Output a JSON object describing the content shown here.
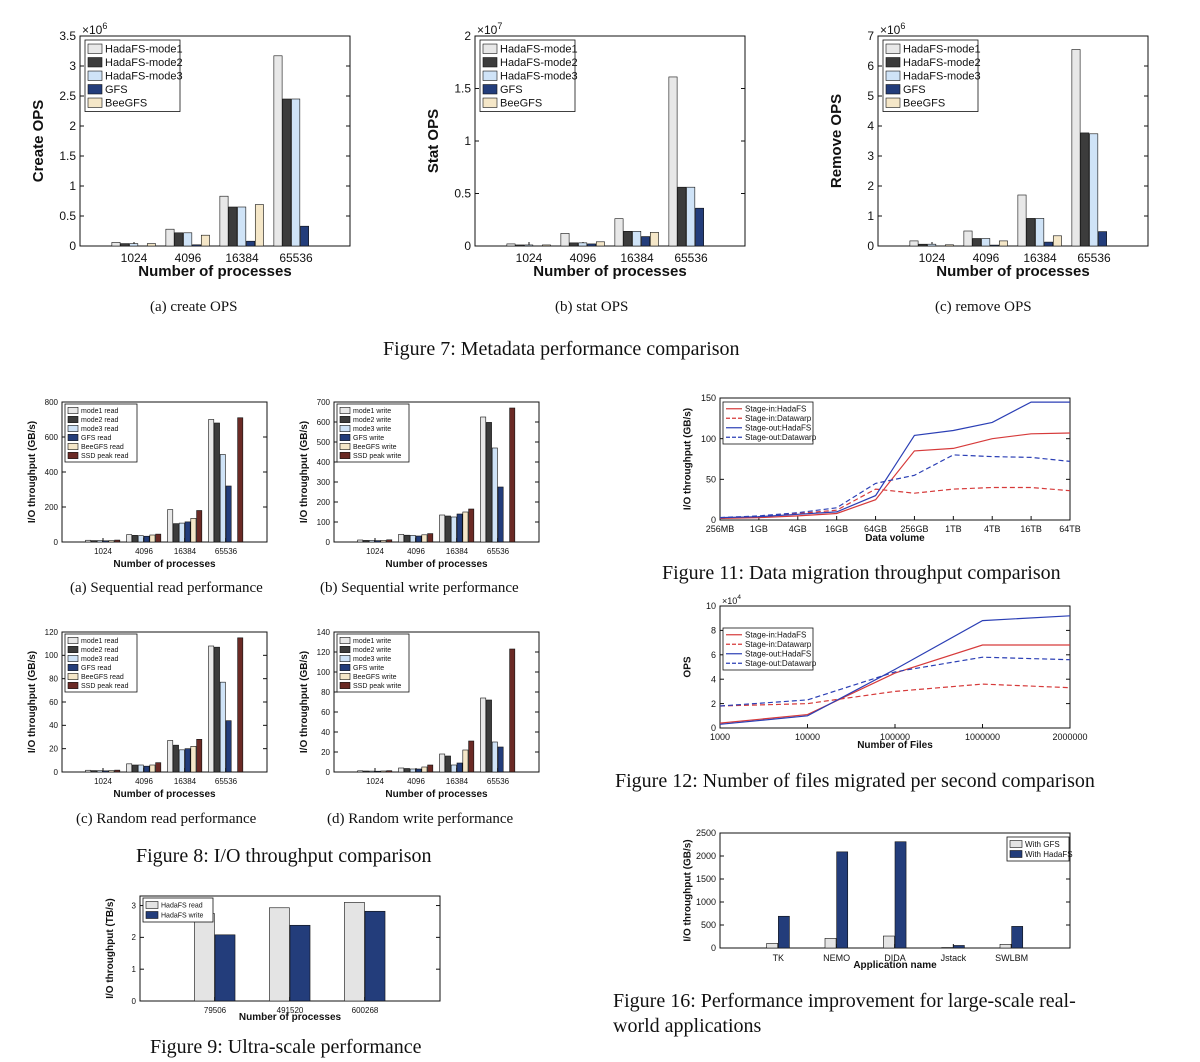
{
  "colors": {
    "mode1": "#e8e8e8",
    "mode2": "#3c3c3c",
    "mode3": "#cfe3f7",
    "gfs": "#233d7b",
    "beegfs": "#f5e7c8",
    "ssd": "#6b2a25",
    "withgfs": "#e4e4e4",
    "withhadafs": "#233d7b",
    "red": "#d63a3a",
    "blue": "#2b3fb5"
  },
  "figures": {
    "fig7": {
      "caption": "Figure 7: Metadata performance comparison"
    },
    "fig8": {
      "caption": "Figure 8: I/O throughput comparison"
    },
    "fig9": {
      "caption": "Figure 9: Ultra-scale performance"
    },
    "fig11": {
      "caption": "Figure 11: Data migration throughput comparison"
    },
    "fig12": {
      "caption": "Figure 12: Number of files migrated per second comparison"
    },
    "fig16": {
      "caption_line1": "Figure 16: Performance improvement for large-scale real-",
      "caption_line2": "world applications"
    }
  },
  "chart_data": [
    {
      "id": "f7a",
      "type": "bar",
      "caption": "(a)  create OPS",
      "ylabel": "Create OPS",
      "xlabel": "Number of processes",
      "multiplier": "×10",
      "multiplier_exp": "6",
      "ylim": [
        0,
        3.5
      ],
      "yticks": [
        0,
        0.5,
        1,
        1.5,
        2,
        2.5,
        3,
        3.5
      ],
      "ytick_labels": [
        "0",
        "0.5",
        "1",
        "1.5",
        "2",
        "2.5",
        "3",
        "3.5"
      ],
      "categories": [
        "1024",
        "4096",
        "16384",
        "65536"
      ],
      "series": [
        {
          "name": "HadaFS-mode1",
          "color": "mode1",
          "values": [
            0.06,
            0.28,
            0.83,
            3.17
          ]
        },
        {
          "name": "HadaFS-mode2",
          "color": "mode2",
          "values": [
            0.04,
            0.22,
            0.65,
            2.45
          ]
        },
        {
          "name": "HadaFS-mode3",
          "color": "mode3",
          "values": [
            0.04,
            0.22,
            0.65,
            2.45
          ]
        },
        {
          "name": "GFS",
          "color": "gfs",
          "values": [
            0.0,
            0.02,
            0.08,
            0.33
          ]
        },
        {
          "name": "BeeGFS",
          "color": "beegfs",
          "values": [
            0.04,
            0.18,
            0.69,
            0.0
          ]
        }
      ]
    },
    {
      "id": "f7b",
      "type": "bar",
      "caption": "(b)  stat OPS",
      "ylabel": "Stat OPS",
      "xlabel": "Number of processes",
      "multiplier": "×10",
      "multiplier_exp": "7",
      "ylim": [
        0,
        2
      ],
      "yticks": [
        0,
        0.5,
        1,
        1.5,
        2
      ],
      "ytick_labels": [
        "0",
        "0.5",
        "1",
        "1.5",
        "2"
      ],
      "categories": [
        "1024",
        "4096",
        "16384",
        "65536"
      ],
      "series": [
        {
          "name": "HadaFS-mode1",
          "color": "mode1",
          "values": [
            0.02,
            0.12,
            0.26,
            1.61
          ]
        },
        {
          "name": "HadaFS-mode2",
          "color": "mode2",
          "values": [
            0.01,
            0.03,
            0.14,
            0.56
          ]
        },
        {
          "name": "HadaFS-mode3",
          "color": "mode3",
          "values": [
            0.01,
            0.03,
            0.14,
            0.56
          ]
        },
        {
          "name": "GFS",
          "color": "gfs",
          "values": [
            0.0,
            0.02,
            0.09,
            0.36
          ]
        },
        {
          "name": "BeeGFS",
          "color": "beegfs",
          "values": [
            0.01,
            0.04,
            0.13,
            0.0
          ]
        }
      ]
    },
    {
      "id": "f7c",
      "type": "bar",
      "caption": "(c)  remove OPS",
      "ylabel": "Remove OPS",
      "xlabel": "Number of processes",
      "multiplier": "×10",
      "multiplier_exp": "6",
      "ylim": [
        0,
        7
      ],
      "yticks": [
        0,
        1,
        2,
        3,
        4,
        5,
        6,
        7
      ],
      "ytick_labels": [
        "0",
        "1",
        "2",
        "3",
        "4",
        "5",
        "6",
        "7"
      ],
      "categories": [
        "1024",
        "4096",
        "16384",
        "65536"
      ],
      "series": [
        {
          "name": "HadaFS-mode1",
          "color": "mode1",
          "values": [
            0.17,
            0.5,
            1.7,
            6.55
          ]
        },
        {
          "name": "HadaFS-mode2",
          "color": "mode2",
          "values": [
            0.06,
            0.25,
            0.92,
            3.77
          ]
        },
        {
          "name": "HadaFS-mode3",
          "color": "mode3",
          "values": [
            0.06,
            0.25,
            0.92,
            3.74
          ]
        },
        {
          "name": "GFS",
          "color": "gfs",
          "values": [
            0.0,
            0.03,
            0.13,
            0.48
          ]
        },
        {
          "name": "BeeGFS",
          "color": "beegfs",
          "values": [
            0.04,
            0.17,
            0.34,
            0.0
          ]
        }
      ]
    },
    {
      "id": "f8a",
      "type": "bar",
      "caption": "(a)  Sequential read performance",
      "ylabel": "I/O throughput (GB/s)",
      "xlabel": "Number of processes",
      "ylim": [
        0,
        800
      ],
      "yticks": [
        0,
        200,
        400,
        600,
        800
      ],
      "ytick_labels": [
        "0",
        "200",
        "400",
        "600",
        "800"
      ],
      "categories": [
        "1024",
        "4096",
        "16384",
        "65536"
      ],
      "series": [
        {
          "name": "mode1 read",
          "color": "mode1",
          "values": [
            10,
            42,
            185,
            700
          ]
        },
        {
          "name": "mode2 read",
          "color": "mode2",
          "values": [
            8,
            38,
            105,
            680
          ]
        },
        {
          "name": "mode3 read",
          "color": "mode3",
          "values": [
            8,
            36,
            108,
            500
          ]
        },
        {
          "name": "GFS read",
          "color": "gfs",
          "values": [
            7,
            33,
            115,
            320
          ]
        },
        {
          "name": "BeeGFS read",
          "color": "beegfs",
          "values": [
            8,
            40,
            135,
            0
          ]
        },
        {
          "name": "SSD peak read",
          "color": "ssd",
          "values": [
            11,
            45,
            180,
            710
          ]
        }
      ]
    },
    {
      "id": "f8b",
      "type": "bar",
      "caption": "(b)  Sequential write performance",
      "ylabel": "I/O throughput (GB/s)",
      "xlabel": "Number of processes",
      "ylim": [
        0,
        700
      ],
      "yticks": [
        0,
        100,
        200,
        300,
        400,
        500,
        600,
        700
      ],
      "ytick_labels": [
        "0",
        "100",
        "200",
        "300",
        "400",
        "500",
        "600",
        "700"
      ],
      "categories": [
        "1024",
        "4096",
        "16384",
        "65536"
      ],
      "series": [
        {
          "name": "mode1 write",
          "color": "mode1",
          "values": [
            10,
            38,
            135,
            625
          ]
        },
        {
          "name": "mode2 write",
          "color": "mode2",
          "values": [
            8,
            34,
            130,
            598
          ]
        },
        {
          "name": "mode3 write",
          "color": "mode3",
          "values": [
            8,
            33,
            125,
            470
          ]
        },
        {
          "name": "GFS write",
          "color": "gfs",
          "values": [
            7,
            30,
            140,
            275
          ]
        },
        {
          "name": "BeeGFS write",
          "color": "beegfs",
          "values": [
            8,
            36,
            150,
            0
          ]
        },
        {
          "name": "SSD peak write",
          "color": "ssd",
          "values": [
            11,
            42,
            165,
            670
          ]
        }
      ]
    },
    {
      "id": "f8c",
      "type": "bar",
      "caption": "(c)  Random read performance",
      "ylabel": "I/O throughput (GB/s)",
      "xlabel": "Number of processes",
      "ylim": [
        0,
        120
      ],
      "yticks": [
        0,
        20,
        40,
        60,
        80,
        100,
        120
      ],
      "ytick_labels": [
        "0",
        "20",
        "40",
        "60",
        "80",
        "100",
        "120"
      ],
      "categories": [
        "1024",
        "4096",
        "16384",
        "65536"
      ],
      "series": [
        {
          "name": "mode1 read",
          "color": "mode1",
          "values": [
            1.5,
            7,
            27,
            108
          ]
        },
        {
          "name": "mode2 read",
          "color": "mode2",
          "values": [
            1.2,
            6,
            23,
            107
          ]
        },
        {
          "name": "mode3 read",
          "color": "mode3",
          "values": [
            1.1,
            6,
            19,
            77
          ]
        },
        {
          "name": "GFS read",
          "color": "gfs",
          "values": [
            1.0,
            5,
            20,
            44
          ]
        },
        {
          "name": "BeeGFS read",
          "color": "beegfs",
          "values": [
            1.2,
            6,
            22,
            0
          ]
        },
        {
          "name": "SSD peak read",
          "color": "ssd",
          "values": [
            1.6,
            8,
            28,
            115
          ]
        }
      ]
    },
    {
      "id": "f8d",
      "type": "bar",
      "caption": "(d)  Random write performance",
      "ylabel": "I/O throughput (GB/s)",
      "xlabel": "Number of processes",
      "ylim": [
        0,
        140
      ],
      "yticks": [
        0,
        20,
        40,
        60,
        80,
        100,
        120,
        140
      ],
      "ytick_labels": [
        "0",
        "20",
        "40",
        "60",
        "80",
        "100",
        "120",
        "140"
      ],
      "categories": [
        "1024",
        "4096",
        "16384",
        "65536"
      ],
      "series": [
        {
          "name": "mode1 write",
          "color": "mode1",
          "values": [
            1.2,
            4,
            18,
            74
          ]
        },
        {
          "name": "mode2 write",
          "color": "mode2",
          "values": [
            1.0,
            3.5,
            16,
            72
          ]
        },
        {
          "name": "mode3 write",
          "color": "mode3",
          "values": [
            0.9,
            3,
            7,
            30
          ]
        },
        {
          "name": "GFS write",
          "color": "gfs",
          "values": [
            0.8,
            3,
            9,
            25
          ]
        },
        {
          "name": "BeeGFS write",
          "color": "beegfs",
          "values": [
            1.0,
            5,
            22,
            0
          ]
        },
        {
          "name": "SSD peak write",
          "color": "ssd",
          "values": [
            1.3,
            7,
            31,
            123
          ]
        }
      ]
    },
    {
      "id": "f9",
      "type": "bar",
      "ylabel": "I/O throughput (TB/s)",
      "xlabel": "Number of processes",
      "ylim": [
        0,
        3.3
      ],
      "yticks": [
        0,
        1,
        2,
        3
      ],
      "ytick_labels": [
        "0",
        "1",
        "2",
        "3"
      ],
      "categories": [
        "79506",
        "491520",
        "600268"
      ],
      "series": [
        {
          "name": "HadaFS read",
          "color": "withgfs",
          "values": [
            2.75,
            2.93,
            3.1
          ]
        },
        {
          "name": "HadaFS write",
          "color": "withhadafs",
          "values": [
            2.08,
            2.38,
            2.82
          ]
        }
      ]
    },
    {
      "id": "f11",
      "type": "line",
      "ylabel": "I/O throughput (GB/s)",
      "xlabel": "Data volume",
      "ylim": [
        0,
        150
      ],
      "yticks": [
        0,
        50,
        100,
        150
      ],
      "ytick_labels": [
        "0",
        "50",
        "100",
        "150"
      ],
      "categories": [
        "256MB",
        "1GB",
        "4GB",
        "16GB",
        "64GB",
        "256GB",
        "1TB",
        "4TB",
        "16TB",
        "64TB"
      ],
      "series": [
        {
          "name": "Stage-in:HadaFS",
          "color": "red",
          "dash": false,
          "values": [
            2,
            3,
            5,
            8,
            25,
            85,
            88,
            100,
            106,
            107
          ]
        },
        {
          "name": "Stage-in:Datawarp",
          "color": "red",
          "dash": true,
          "values": [
            2,
            4,
            8,
            12,
            38,
            33,
            38,
            40,
            40,
            36
          ]
        },
        {
          "name": "Stage-out:HadaFS",
          "color": "blue",
          "dash": false,
          "values": [
            3,
            4,
            7,
            10,
            30,
            104,
            110,
            120,
            145,
            145
          ]
        },
        {
          "name": "Stage-out:Datawarp",
          "color": "blue",
          "dash": true,
          "values": [
            3,
            5,
            9,
            15,
            45,
            55,
            80,
            78,
            77,
            72
          ]
        }
      ]
    },
    {
      "id": "f12",
      "type": "line",
      "ylabel": "OPS",
      "xlabel": "Number of Files",
      "multiplier": "×10",
      "multiplier_exp": "4",
      "ylim": [
        0,
        10
      ],
      "yticks": [
        0,
        2,
        4,
        6,
        8,
        10
      ],
      "ytick_labels": [
        "0",
        "2",
        "4",
        "6",
        "8",
        "10"
      ],
      "categories": [
        "1000",
        "10000",
        "100000",
        "1000000",
        "2000000"
      ],
      "series": [
        {
          "name": "Stage-in:HadaFS",
          "color": "red",
          "dash": false,
          "values": [
            0.4,
            1.1,
            4.5,
            6.8,
            6.8
          ]
        },
        {
          "name": "Stage-in:Datawarp",
          "color": "red",
          "dash": true,
          "values": [
            1.8,
            2.0,
            3.0,
            3.6,
            3.3
          ]
        },
        {
          "name": "Stage-out:HadaFS",
          "color": "blue",
          "dash": false,
          "values": [
            0.3,
            1.0,
            4.8,
            8.8,
            9.2
          ]
        },
        {
          "name": "Stage-out:Datawarp",
          "color": "blue",
          "dash": true,
          "values": [
            1.8,
            2.3,
            4.6,
            5.8,
            5.6
          ]
        }
      ]
    },
    {
      "id": "f16",
      "type": "bar",
      "ylabel": "I/O throughput (GB/s)",
      "xlabel": "Application name",
      "ylim": [
        0,
        2500
      ],
      "yticks": [
        0,
        500,
        1000,
        1500,
        2000,
        2500
      ],
      "ytick_labels": [
        "0",
        "500",
        "1000",
        "1500",
        "2000",
        "2500"
      ],
      "categories": [
        "TK",
        "NEMO",
        "DIDA",
        "Jstack",
        "SWLBM"
      ],
      "series": [
        {
          "name": "With GFS",
          "color": "withgfs",
          "values": [
            100,
            210,
            260,
            10,
            80
          ]
        },
        {
          "name": "With HadaFS",
          "color": "withhadafs",
          "values": [
            690,
            2090,
            2310,
            55,
            470
          ]
        }
      ]
    }
  ]
}
